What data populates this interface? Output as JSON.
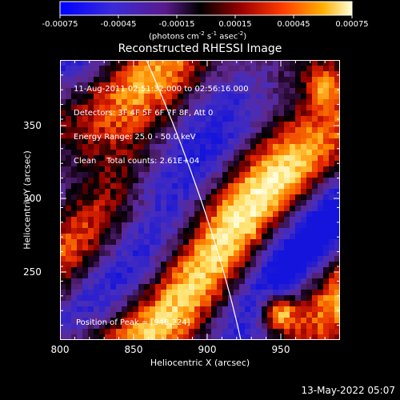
{
  "colorbar": {
    "ticks": [
      "-0.00075",
      "-0.00045",
      "-0.00015",
      "0.00015",
      "0.00045",
      "0.00075"
    ],
    "units_prefix": "(photons cm",
    "units_e1": "-2",
    "units_mid1": " s",
    "units_e2": "-1",
    "units_mid2": " asec",
    "units_e3": "-2",
    "units_suffix": ")"
  },
  "plot": {
    "title": "Reconstructed RHESSI Image",
    "info_lines": [
      "11-Aug-2011 02:51:32.000 to 02:56:16.000",
      "Detectors: 3F 4F 5F 6F 7F 8F, Att 0",
      "Energy Range: 25.0 - 50.0 keV",
      "Clean    Total counts: 2.61E+04"
    ],
    "peak_label": "Position of Peak = [948,224]",
    "xlabel": "Heliocentric X (arcsec)",
    "ylabel": "Heliocentric Y (arcsec)",
    "xticks": [
      "800",
      "850",
      "900",
      "950"
    ],
    "yticks": [
      "250",
      "300",
      "350"
    ],
    "colors": {
      "axis": "#ffffff",
      "limb": "#ffffff",
      "background": "#000000"
    }
  },
  "footer": {
    "timestamp": "13-May-2022 05:07"
  }
}
